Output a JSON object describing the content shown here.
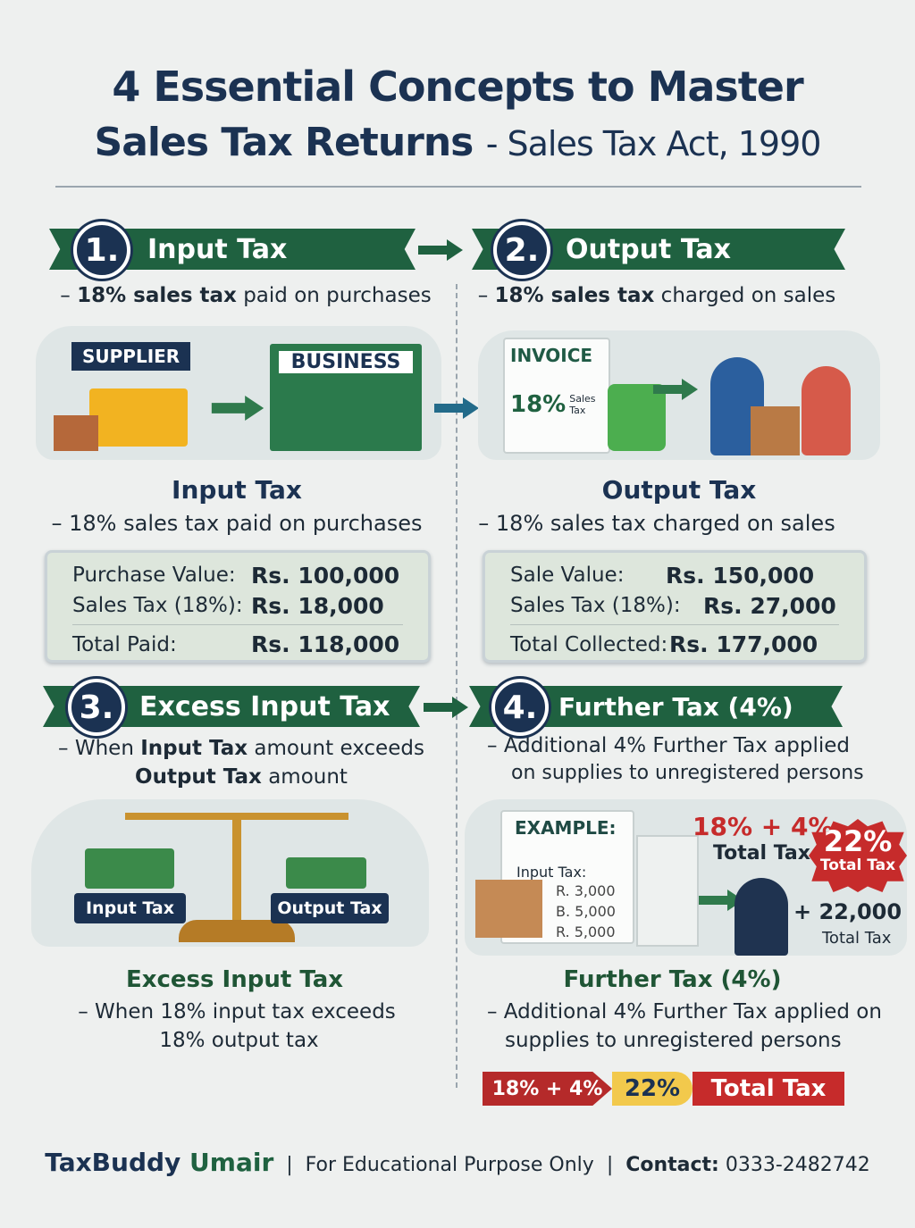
{
  "title": {
    "line1": "4 Essential Concepts to Master",
    "line2_main": "Sales Tax Returns",
    "line2_sub": "- Sales Tax Act, 1990"
  },
  "colors": {
    "navy": "#1b3252",
    "green": "#1f6140",
    "red": "#c62b2b",
    "gold": "#f2c94c"
  },
  "sections": [
    {
      "number": "1.",
      "banner": "Input Tax",
      "desc_bold": "18% sales tax",
      "desc_rest": " paid on purchases",
      "scene": {
        "supplier": "SUPPLIER",
        "business": "BUSINESS"
      },
      "heading": "Input Tax",
      "subheading": "– 18% sales tax paid on purchases",
      "rows": [
        {
          "k": "Purchase Value:",
          "v": "Rs. 100,000"
        },
        {
          "k": "Sales Tax (18%):",
          "v": "Rs. 18,000"
        },
        {
          "k": "Total Paid:",
          "v": "Rs. 118,000"
        }
      ]
    },
    {
      "number": "2.",
      "banner": "Output Tax",
      "desc_bold": "18% sales tax",
      "desc_rest": " charged on sales",
      "scene": {
        "invoice": "INVOICE",
        "pct": "18%",
        "label": "Sales Tax"
      },
      "heading": "Output Tax",
      "subheading": "– 18% sales tax charged on sales",
      "rows": [
        {
          "k": "Sale Value:",
          "v": "Rs. 150,000"
        },
        {
          "k": "Sales Tax (18%):",
          "v": "Rs. 27,000"
        },
        {
          "k": "Total Collected:",
          "v": "Rs. 177,000"
        }
      ]
    },
    {
      "number": "3.",
      "banner": "Excess Input Tax",
      "desc_pre": "When ",
      "desc_b1": "Input Tax",
      "desc_mid": " amount exceeds",
      "desc_b2": "Output Tax",
      "desc_post": " amount",
      "scene": {
        "left": "Input Tax",
        "right": "Output Tax"
      },
      "heading": "Excess Input Tax",
      "sub1": "– When 18% input tax exceeds",
      "sub2": "18% output tax"
    },
    {
      "number": "4.",
      "banner": "Further Tax (4%)",
      "desc1": "Additional 4% Further Tax applied",
      "desc2": "on supplies to unregistered persons",
      "scene": {
        "example": "EXAMPLE:",
        "input_tax": "Input Tax:",
        "amounts": [
          "R. 3,000",
          "B. 5,000",
          "R. 5,000"
        ],
        "formula": "18% + 4%",
        "total_tax": "Total Tax",
        "badge_pct": "22%",
        "badge_label": "Total Tax",
        "plus_amount": "+ 22,000",
        "plus_label": "Total Tax"
      },
      "heading": "Further Tax (4%)",
      "sub1": "– Additional 4% Further Tax applied on",
      "sub2": "supplies to unregistered persons",
      "bar": {
        "formula": "18% + 4%",
        "result": "22%",
        "label": "Total Tax"
      }
    }
  ],
  "footer": {
    "brand1": "TaxBuddy",
    "brand2": "Umair",
    "note": "For Educational Purpose Only",
    "contact_label": "Contact:",
    "contact": "0333-2482742"
  }
}
